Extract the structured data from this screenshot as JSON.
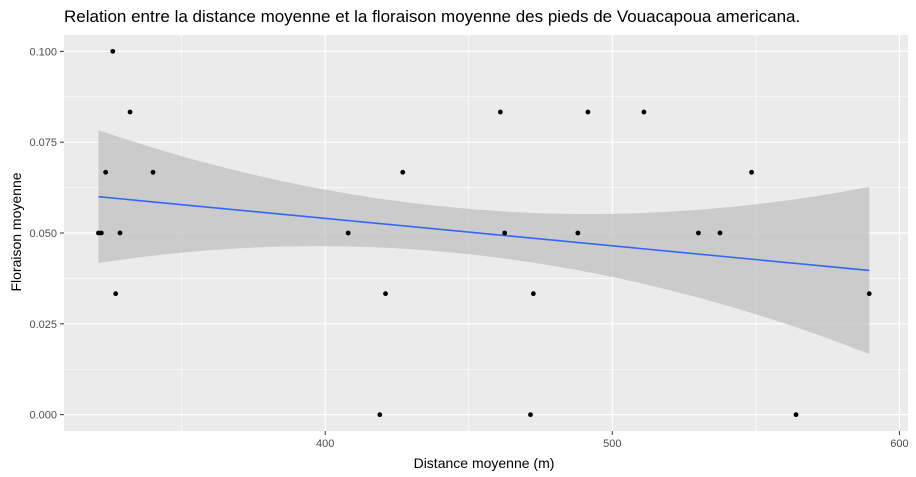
{
  "chart_data": {
    "type": "scatter",
    "title": "Relation entre la distance moyenne et la floraison moyenne des pieds de Vouacapoua americana.",
    "xlabel": "Distance moyenne (m)",
    "ylabel": "Floraison moyenne",
    "xlim": [
      309,
      603
    ],
    "ylim": [
      -0.0045,
      0.1045
    ],
    "x_ticks": [
      400,
      500,
      600
    ],
    "x_tick_labels": [
      "400",
      "500",
      "600"
    ],
    "y_ticks": [
      0,
      0.025,
      0.05,
      0.075,
      0.1
    ],
    "y_tick_labels": [
      "0.000",
      "0.025",
      "0.050",
      "0.075",
      "0.100"
    ],
    "x_minor_ticks": [
      350,
      450,
      550
    ],
    "y_minor_ticks": [
      0.0125,
      0.0375,
      0.0625,
      0.0875
    ],
    "grid": true,
    "points": [
      {
        "x": 321,
        "y": 0.05
      },
      {
        "x": 322,
        "y": 0.05
      },
      {
        "x": 323.5,
        "y": 0.0667
      },
      {
        "x": 326,
        "y": 0.1
      },
      {
        "x": 327,
        "y": 0.0333
      },
      {
        "x": 328.5,
        "y": 0.05
      },
      {
        "x": 332,
        "y": 0.0833
      },
      {
        "x": 340,
        "y": 0.0667
      },
      {
        "x": 408,
        "y": 0.05
      },
      {
        "x": 419,
        "y": 0
      },
      {
        "x": 421,
        "y": 0.0333
      },
      {
        "x": 427,
        "y": 0.0667
      },
      {
        "x": 461,
        "y": 0.0833
      },
      {
        "x": 462.5,
        "y": 0.05
      },
      {
        "x": 471.5,
        "y": 0
      },
      {
        "x": 472.5,
        "y": 0.0333
      },
      {
        "x": 488,
        "y": 0.05
      },
      {
        "x": 491.5,
        "y": 0.0833
      },
      {
        "x": 511,
        "y": 0.0833
      },
      {
        "x": 530,
        "y": 0.05
      },
      {
        "x": 537.5,
        "y": 0.05
      },
      {
        "x": 548.5,
        "y": 0.0667
      },
      {
        "x": 564,
        "y": 0
      },
      {
        "x": 589.5,
        "y": 0.0333
      }
    ],
    "smooth": {
      "method": "lm",
      "x": [
        321,
        589.5
      ],
      "y": [
        0.06,
        0.0397
      ],
      "ci_upper": [
        0.0783,
        0.0627
      ],
      "ci_lower": [
        0.0417,
        0.0167
      ],
      "ci_mid_x": 455,
      "ci_mid": [
        0.0563,
        0.0437
      ],
      "line_color": "#3366FF",
      "ci_color": "#c0c0c0"
    },
    "panel_background": "#EBEBEB",
    "grid_color": "#ffffff",
    "point_color": "#000000"
  }
}
